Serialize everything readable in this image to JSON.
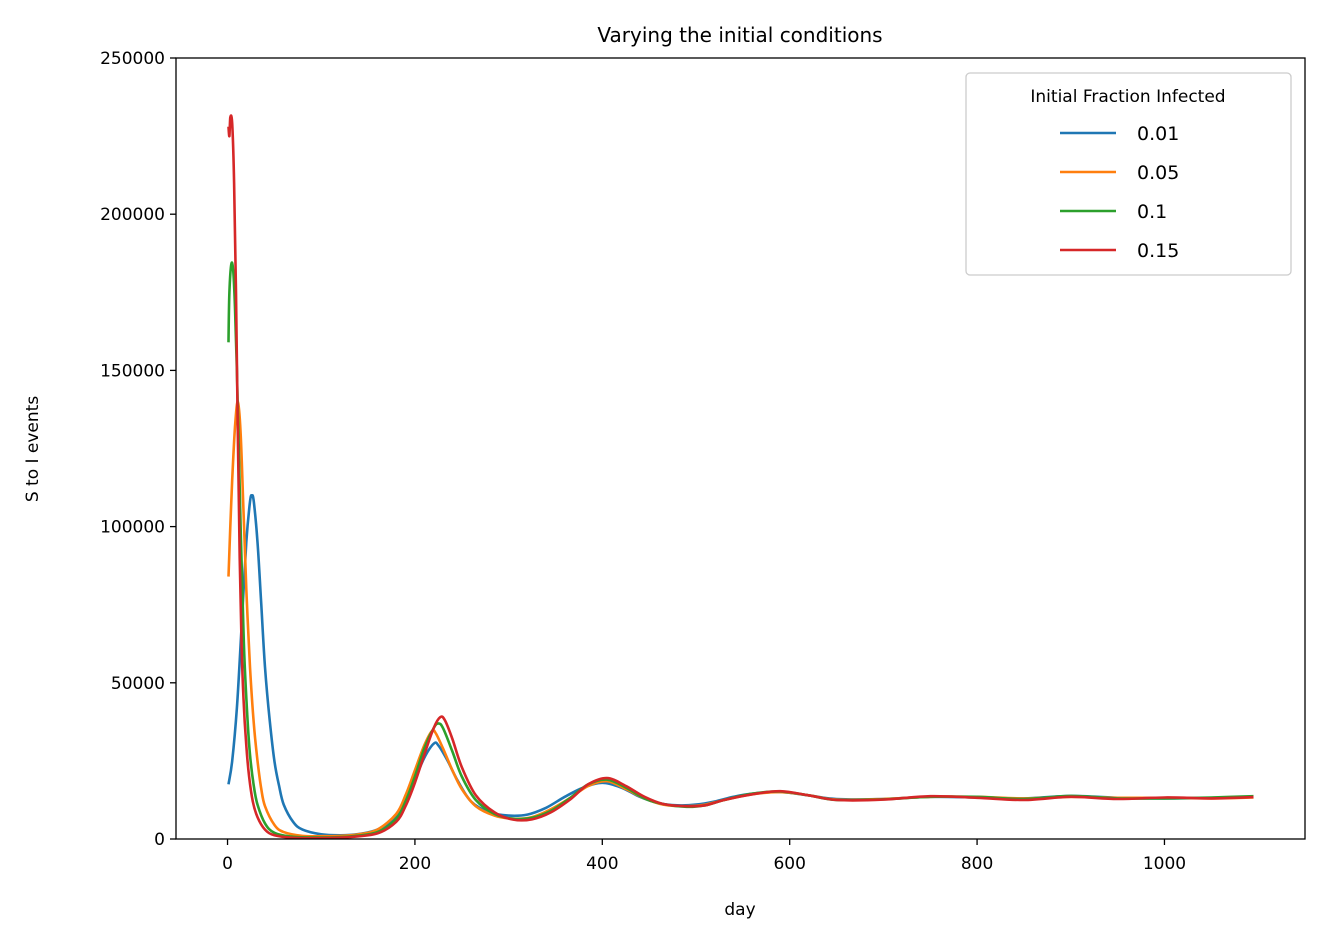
{
  "chart_data": {
    "type": "line",
    "title": "Varying the initial conditions",
    "xlabel": "day",
    "ylabel": "S to I events",
    "xlim": [
      -55,
      1150
    ],
    "ylim": [
      0,
      250000
    ],
    "xticks": [
      0,
      200,
      400,
      600,
      800,
      1000
    ],
    "yticks": [
      0,
      50000,
      100000,
      150000,
      200000,
      250000
    ],
    "grid": false,
    "legend": {
      "title": "Initial Fraction Infected",
      "placement": "upper right"
    },
    "series": [
      {
        "name": "0.01",
        "color": "#1f77b4",
        "points": [
          [
            1,
            17500
          ],
          [
            5,
            25000
          ],
          [
            10,
            42000
          ],
          [
            15,
            68000
          ],
          [
            20,
            95000
          ],
          [
            24,
            108000
          ],
          [
            26,
            110000
          ],
          [
            28,
            108000
          ],
          [
            32,
            95000
          ],
          [
            36,
            75000
          ],
          [
            40,
            55000
          ],
          [
            45,
            38000
          ],
          [
            50,
            25000
          ],
          [
            55,
            17000
          ],
          [
            60,
            11000
          ],
          [
            70,
            5500
          ],
          [
            80,
            3000
          ],
          [
            100,
            1500
          ],
          [
            120,
            1200
          ],
          [
            140,
            1600
          ],
          [
            160,
            3000
          ],
          [
            180,
            7000
          ],
          [
            190,
            12000
          ],
          [
            200,
            19000
          ],
          [
            210,
            26000
          ],
          [
            220,
            30500
          ],
          [
            225,
            30000
          ],
          [
            235,
            25000
          ],
          [
            245,
            19000
          ],
          [
            260,
            12000
          ],
          [
            280,
            8500
          ],
          [
            300,
            7500
          ],
          [
            320,
            7800
          ],
          [
            340,
            10000
          ],
          [
            360,
            13500
          ],
          [
            380,
            16500
          ],
          [
            400,
            18000
          ],
          [
            420,
            16500
          ],
          [
            440,
            13500
          ],
          [
            460,
            11500
          ],
          [
            480,
            10800
          ],
          [
            500,
            11000
          ],
          [
            520,
            12000
          ],
          [
            540,
            13500
          ],
          [
            560,
            14500
          ],
          [
            590,
            15000
          ],
          [
            620,
            14000
          ],
          [
            650,
            12800
          ],
          [
            700,
            12800
          ],
          [
            750,
            13500
          ],
          [
            800,
            13300
          ],
          [
            850,
            13000
          ],
          [
            900,
            13800
          ],
          [
            950,
            13200
          ],
          [
            1000,
            13000
          ],
          [
            1050,
            13200
          ],
          [
            1095,
            13500
          ]
        ]
      },
      {
        "name": "0.05",
        "color": "#ff7f0e",
        "points": [
          [
            1,
            84000
          ],
          [
            3,
            100000
          ],
          [
            5,
            115000
          ],
          [
            8,
            132000
          ],
          [
            11,
            140000
          ],
          [
            14,
            130000
          ],
          [
            17,
            105000
          ],
          [
            20,
            80000
          ],
          [
            24,
            55000
          ],
          [
            28,
            37000
          ],
          [
            32,
            25000
          ],
          [
            36,
            16000
          ],
          [
            40,
            10500
          ],
          [
            50,
            4500
          ],
          [
            60,
            2200
          ],
          [
            80,
            1000
          ],
          [
            100,
            900
          ],
          [
            120,
            1000
          ],
          [
            140,
            1500
          ],
          [
            160,
            3000
          ],
          [
            180,
            8000
          ],
          [
            190,
            14000
          ],
          [
            200,
            22000
          ],
          [
            210,
            30000
          ],
          [
            218,
            34500
          ],
          [
            222,
            34000
          ],
          [
            230,
            29000
          ],
          [
            240,
            22000
          ],
          [
            250,
            16000
          ],
          [
            265,
            10500
          ],
          [
            285,
            7500
          ],
          [
            305,
            6500
          ],
          [
            325,
            7000
          ],
          [
            345,
            9500
          ],
          [
            365,
            13000
          ],
          [
            385,
            17000
          ],
          [
            405,
            18500
          ],
          [
            425,
            16000
          ],
          [
            445,
            13000
          ],
          [
            465,
            11000
          ],
          [
            490,
            10500
          ],
          [
            510,
            11000
          ],
          [
            530,
            12500
          ],
          [
            560,
            14300
          ],
          [
            590,
            15000
          ],
          [
            620,
            14000
          ],
          [
            650,
            12600
          ],
          [
            700,
            12800
          ],
          [
            750,
            13500
          ],
          [
            800,
            13500
          ],
          [
            850,
            13000
          ],
          [
            900,
            13500
          ],
          [
            950,
            13200
          ],
          [
            1000,
            13200
          ],
          [
            1050,
            13000
          ],
          [
            1095,
            13300
          ]
        ]
      },
      {
        "name": "0.1",
        "color": "#2ca02c",
        "points": [
          [
            1,
            159000
          ],
          [
            2,
            175000
          ],
          [
            4,
            184000
          ],
          [
            6,
            182000
          ],
          [
            8,
            170000
          ],
          [
            10,
            150000
          ],
          [
            12,
            125000
          ],
          [
            14,
            100000
          ],
          [
            16,
            78000
          ],
          [
            18,
            58000
          ],
          [
            21,
            40000
          ],
          [
            24,
            27000
          ],
          [
            28,
            17000
          ],
          [
            32,
            11000
          ],
          [
            40,
            5000
          ],
          [
            50,
            2000
          ],
          [
            70,
            700
          ],
          [
            100,
            500
          ],
          [
            130,
            800
          ],
          [
            160,
            2200
          ],
          [
            180,
            6500
          ],
          [
            190,
            12000
          ],
          [
            200,
            20000
          ],
          [
            210,
            29000
          ],
          [
            220,
            35500
          ],
          [
            225,
            37000
          ],
          [
            230,
            35500
          ],
          [
            240,
            28000
          ],
          [
            250,
            20000
          ],
          [
            265,
            12500
          ],
          [
            285,
            8000
          ],
          [
            305,
            6500
          ],
          [
            325,
            6800
          ],
          [
            345,
            9000
          ],
          [
            365,
            13000
          ],
          [
            385,
            17500
          ],
          [
            405,
            19000
          ],
          [
            425,
            16500
          ],
          [
            445,
            13000
          ],
          [
            465,
            11200
          ],
          [
            490,
            10300
          ],
          [
            510,
            10800
          ],
          [
            530,
            12500
          ],
          [
            560,
            14500
          ],
          [
            590,
            15200
          ],
          [
            620,
            14000
          ],
          [
            650,
            12500
          ],
          [
            700,
            12700
          ],
          [
            750,
            13500
          ],
          [
            800,
            13500
          ],
          [
            850,
            12800
          ],
          [
            900,
            13800
          ],
          [
            950,
            13000
          ],
          [
            1000,
            13000
          ],
          [
            1050,
            13300
          ],
          [
            1095,
            13700
          ]
        ]
      },
      {
        "name": "0.15",
        "color": "#d62728",
        "points": [
          [
            1,
            228000
          ],
          [
            2,
            225000
          ],
          [
            3,
            231000
          ],
          [
            5,
            229000
          ],
          [
            7,
            210000
          ],
          [
            9,
            175000
          ],
          [
            11,
            130000
          ],
          [
            13,
            90000
          ],
          [
            15,
            62000
          ],
          [
            17,
            45000
          ],
          [
            20,
            30000
          ],
          [
            23,
            20000
          ],
          [
            27,
            12000
          ],
          [
            32,
            7000
          ],
          [
            40,
            3000
          ],
          [
            50,
            1200
          ],
          [
            70,
            400
          ],
          [
            100,
            300
          ],
          [
            130,
            600
          ],
          [
            160,
            1800
          ],
          [
            180,
            5500
          ],
          [
            190,
            10500
          ],
          [
            200,
            18000
          ],
          [
            210,
            27000
          ],
          [
            220,
            35500
          ],
          [
            227,
            39000
          ],
          [
            232,
            38000
          ],
          [
            240,
            32000
          ],
          [
            250,
            23000
          ],
          [
            265,
            14000
          ],
          [
            285,
            8500
          ],
          [
            305,
            6200
          ],
          [
            325,
            6300
          ],
          [
            345,
            8500
          ],
          [
            365,
            12500
          ],
          [
            385,
            17500
          ],
          [
            405,
            19500
          ],
          [
            425,
            17000
          ],
          [
            445,
            13500
          ],
          [
            465,
            11200
          ],
          [
            490,
            10500
          ],
          [
            510,
            10800
          ],
          [
            530,
            12500
          ],
          [
            560,
            14300
          ],
          [
            590,
            15300
          ],
          [
            620,
            14000
          ],
          [
            650,
            12500
          ],
          [
            700,
            12600
          ],
          [
            750,
            13700
          ],
          [
            800,
            13200
          ],
          [
            850,
            12500
          ],
          [
            900,
            13500
          ],
          [
            950,
            12800
          ],
          [
            1000,
            13300
          ],
          [
            1050,
            13000
          ],
          [
            1095,
            13400
          ]
        ]
      }
    ]
  }
}
